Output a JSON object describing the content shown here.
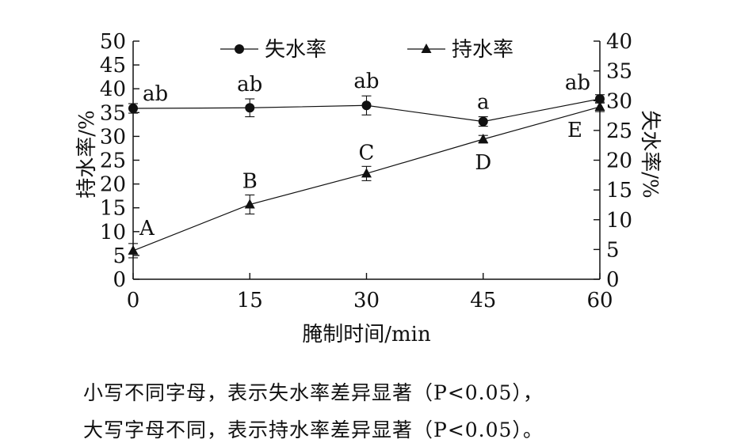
{
  "chart_data": {
    "type": "line",
    "x": [
      0,
      15,
      30,
      45,
      60
    ],
    "xlabel": "腌制时间/min",
    "xlim": [
      0,
      60
    ],
    "xticks": [
      "0",
      "15",
      "30",
      "45",
      "60"
    ],
    "ylabel_left": "持水率/%",
    "ylim_left": [
      0,
      50
    ],
    "yticks_left": [
      "0",
      "5",
      "10",
      "15",
      "20",
      "25",
      "30",
      "35",
      "40",
      "45",
      "50"
    ],
    "ylabel_right": "失水率/%",
    "ylim_right": [
      0,
      40
    ],
    "yticks_right": [
      "0",
      "5",
      "10",
      "15",
      "20",
      "25",
      "30",
      "35",
      "40"
    ],
    "legend_position": "top",
    "series": [
      {
        "name": "失水率",
        "marker": "circle",
        "axis": "right",
        "values": [
          28.7,
          28.8,
          29.2,
          26.5,
          30.3
        ],
        "errors": [
          0.8,
          1.5,
          1.6,
          0.8,
          0.7
        ],
        "labels": [
          "ab",
          "ab",
          "ab",
          "a",
          "ab"
        ]
      },
      {
        "name": "持水率",
        "marker": "triangle",
        "axis": "left",
        "values": [
          6.0,
          15.7,
          22.2,
          29.4,
          36.2
        ],
        "errors": [
          1.5,
          2.0,
          1.5,
          0.8,
          1.0
        ],
        "labels": [
          "A",
          "B",
          "C",
          "D",
          "E"
        ]
      }
    ],
    "grid": false,
    "color": "#111111"
  },
  "notes": {
    "line1": "小写不同字母，表示失水率差异显著（P<0.05），",
    "line2": "大写字母不同，表示持水率差异显著（P<0.05）。"
  }
}
